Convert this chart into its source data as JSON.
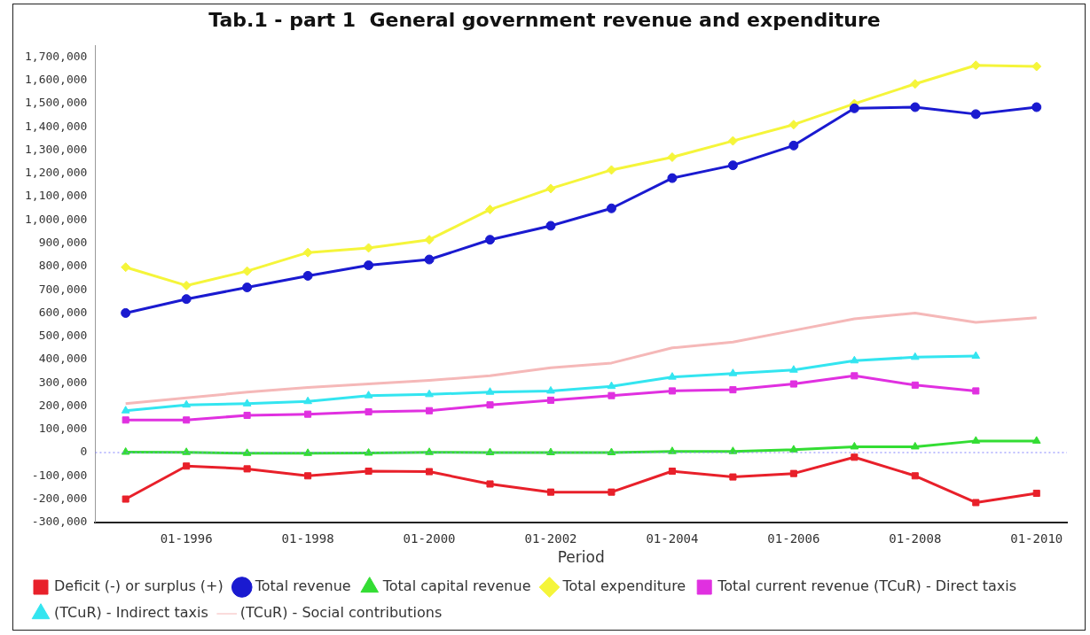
{
  "chart_data": {
    "type": "line",
    "title": "Tab.1 - part 1  General government revenue and expenditure",
    "xlabel": "Period",
    "categories": [
      null,
      "01-1996",
      null,
      "01-1998",
      null,
      "01-2000",
      null,
      "01-2002",
      null,
      "01-2004",
      null,
      "01-2006",
      null,
      "01-2008",
      null,
      "01-2010"
    ],
    "series": [
      {
        "name": "Deficit (-) or surplus (+)",
        "color": "#e8202a",
        "marker": "square",
        "values": [
          -200000,
          -58000,
          -70000,
          -100000,
          -80000,
          -82000,
          -135000,
          -170000,
          -170000,
          -80000,
          -105000,
          -90000,
          -20000,
          -100000,
          -215000,
          -175000
        ]
      },
      {
        "name": "Total revenue",
        "color": "#1a1ad0",
        "marker": "circle",
        "values": [
          600000,
          660000,
          710000,
          760000,
          805000,
          830000,
          915000,
          975000,
          1050000,
          1180000,
          1235000,
          1320000,
          1480000,
          1485000,
          1455000,
          1485000
        ]
      },
      {
        "name": "Total capital revenue",
        "color": "#33dd33",
        "marker": "triangle",
        "values": [
          2000,
          1000,
          -3000,
          -3000,
          -2000,
          1000,
          0,
          0,
          0,
          5000,
          5000,
          12000,
          25000,
          25000,
          50000,
          50000
        ]
      },
      {
        "name": "Total expenditure",
        "color": "#f5f53a",
        "marker": "diamond",
        "values": [
          797000,
          718000,
          780000,
          860000,
          880000,
          915000,
          1045000,
          1135000,
          1215000,
          1270000,
          1340000,
          1410000,
          1500000,
          1585000,
          1665000,
          1660000
        ]
      },
      {
        "name": "Total current revenue (TCuR) - Direct taxis",
        "color": "#e030e0",
        "marker": "square",
        "values": [
          140000,
          140000,
          160000,
          165000,
          175000,
          180000,
          205000,
          225000,
          245000,
          265000,
          270000,
          295000,
          330000,
          290000,
          265000,
          null
        ]
      },
      {
        "name": "(TCuR) - Indirect taxis",
        "color": "#33e5f0",
        "marker": "triangle",
        "values": [
          180000,
          205000,
          210000,
          220000,
          245000,
          250000,
          260000,
          265000,
          285000,
          325000,
          340000,
          355000,
          395000,
          410000,
          415000,
          null
        ]
      },
      {
        "name": "(TCuR) - Social contributions",
        "color": "#f5b8b8",
        "marker": "none",
        "values": [
          210000,
          235000,
          260000,
          280000,
          295000,
          310000,
          330000,
          365000,
          385000,
          450000,
          475000,
          525000,
          575000,
          600000,
          560000,
          580000
        ]
      }
    ],
    "ylim": [
      -300000,
      1750000
    ],
    "yticks": [
      {
        "value": -300000,
        "label": "-300,000"
      },
      {
        "value": -200000,
        "label": "-200,000"
      },
      {
        "value": -100000,
        "label": "-100,000"
      },
      0,
      {
        "value": 100000,
        "label": "100,000"
      },
      {
        "value": 200000,
        "label": "200,000"
      },
      {
        "value": 300000,
        "label": "300,000"
      },
      {
        "value": 400000,
        "label": "400,000"
      },
      {
        "value": 500000,
        "label": "500,000"
      },
      {
        "value": 600000,
        "label": "600,000"
      },
      {
        "value": 700000,
        "label": "700,000"
      },
      {
        "value": 800000,
        "label": "800,000"
      },
      {
        "value": 900000,
        "label": "900,000"
      },
      {
        "value": 1000000,
        "label": "1,000,000"
      },
      {
        "value": 1100000,
        "label": "1,100,000"
      },
      {
        "value": 1200000,
        "label": "1,200,000"
      },
      {
        "value": 1300000,
        "label": "1,300,000"
      },
      {
        "value": 1400000,
        "label": "1,400,000"
      },
      {
        "value": 1500000,
        "label": "1,500,000"
      },
      {
        "value": 1600000,
        "label": "1,600,000"
      },
      {
        "value": 1700000,
        "label": "1,700,000"
      }
    ],
    "ref_lines": [
      {
        "axis": "y",
        "value": 0,
        "color": "#8080ff",
        "line_style": "dotted"
      }
    ],
    "grid": false,
    "legend": "bottom"
  }
}
